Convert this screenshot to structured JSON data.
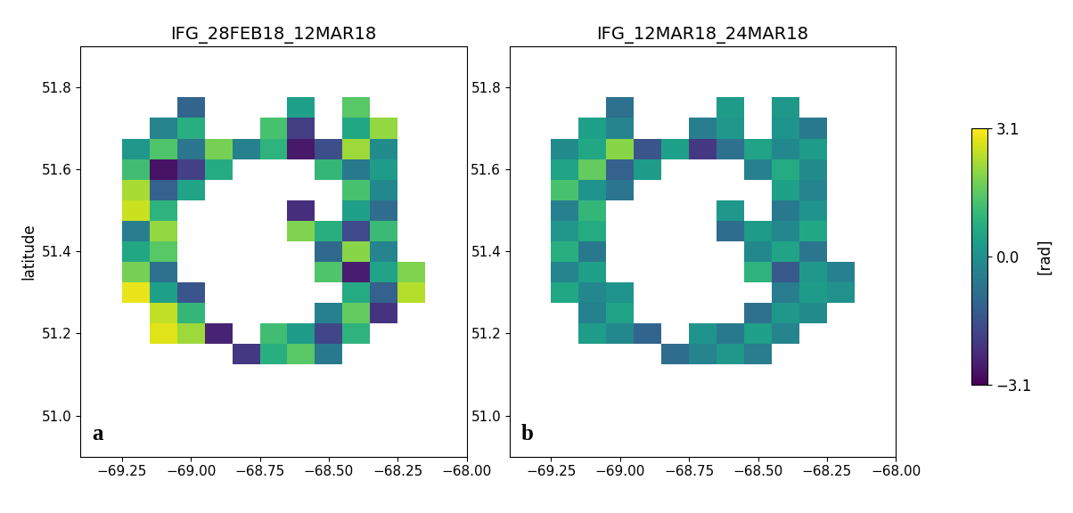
{
  "chart_data": [
    {
      "type": "heatmap",
      "title": "IFG_28FEB18_12MAR18",
      "panel_label": "a",
      "ylabel": "latitude",
      "color": "viridis",
      "x": [
        -69.3,
        -69.2,
        -69.1,
        -69.0,
        -68.9,
        -68.8,
        -68.7,
        -68.6,
        -68.5,
        -68.4,
        -68.3,
        -68.2
      ],
      "y": [
        51.15,
        51.2,
        51.25,
        51.3,
        51.35,
        51.4,
        51.45,
        51.5,
        51.55,
        51.6,
        51.65,
        51.7,
        51.75
      ],
      "values": [
        [
          null,
          null,
          null,
          null,
          null,
          -2.1,
          0.8,
          1.5,
          -0.6,
          null,
          null,
          null
        ],
        [
          null,
          null,
          2.8,
          2.2,
          -2.5,
          null,
          1.2,
          0.3,
          -1.8,
          0.9,
          null,
          null
        ],
        [
          null,
          null,
          2.5,
          1.0,
          null,
          null,
          null,
          null,
          -0.4,
          1.6,
          -2.2,
          null
        ],
        [
          null,
          2.9,
          0.4,
          -1.5,
          null,
          null,
          null,
          null,
          null,
          0.7,
          -1.2,
          2.4
        ],
        [
          null,
          1.8,
          -0.8,
          null,
          null,
          null,
          null,
          null,
          1.4,
          -2.6,
          0.5,
          1.9
        ],
        [
          null,
          0.6,
          1.5,
          null,
          null,
          null,
          null,
          null,
          -1.0,
          2.0,
          -0.3,
          null
        ],
        [
          null,
          -0.5,
          2.1,
          null,
          null,
          null,
          null,
          1.9,
          0.8,
          -1.7,
          1.1,
          null
        ],
        [
          null,
          2.6,
          0.9,
          null,
          null,
          null,
          null,
          -2.3,
          null,
          0.4,
          -0.9,
          null
        ],
        [
          null,
          2.3,
          -1.2,
          0.5,
          null,
          null,
          null,
          null,
          null,
          1.3,
          -0.2,
          null
        ],
        [
          null,
          1.2,
          -2.8,
          -1.9,
          0.7,
          null,
          null,
          null,
          1.0,
          -0.6,
          0.3,
          null
        ],
        [
          null,
          0.2,
          1.4,
          -0.7,
          1.8,
          -0.4,
          0.9,
          -2.7,
          -1.6,
          2.2,
          -0.1,
          null
        ],
        [
          null,
          null,
          -0.3,
          0.8,
          null,
          null,
          1.3,
          -2.0,
          null,
          0.6,
          2.1,
          null
        ],
        [
          null,
          null,
          null,
          -1.1,
          null,
          null,
          null,
          0.4,
          null,
          1.5,
          null,
          null
        ]
      ],
      "xlim": [
        -69.4,
        -68.0
      ],
      "ylim": [
        50.9,
        51.9
      ],
      "xticks": [
        {
          "value": -69.25,
          "label": "−69.25"
        },
        {
          "value": -69.0,
          "label": "−69.00"
        },
        {
          "value": -68.75,
          "label": "−68.75"
        },
        {
          "value": -68.5,
          "label": "−68.50"
        },
        {
          "value": -68.25,
          "label": "−68.25"
        },
        {
          "value": -68.0,
          "label": "−68.00"
        }
      ],
      "yticks": [
        51.0,
        51.2,
        51.4,
        51.6,
        51.8
      ]
    },
    {
      "type": "heatmap",
      "title": "IFG_12MAR18_24MAR18",
      "panel_label": "b",
      "color": "viridis",
      "x": [
        -69.3,
        -69.2,
        -69.1,
        -69.0,
        -68.9,
        -68.8,
        -68.7,
        -68.6,
        -68.5,
        -68.4,
        -68.3,
        -68.2
      ],
      "y": [
        51.15,
        51.2,
        51.25,
        51.3,
        51.35,
        51.4,
        51.45,
        51.5,
        51.55,
        51.6,
        51.65,
        51.7,
        51.75
      ],
      "values": [
        [
          null,
          null,
          null,
          null,
          null,
          -0.9,
          -0.3,
          0.2,
          -0.5,
          null,
          null,
          null
        ],
        [
          null,
          null,
          0.3,
          -0.2,
          -1.1,
          null,
          0.1,
          -0.6,
          0.4,
          -0.3,
          null,
          null
        ],
        [
          null,
          null,
          -0.4,
          0.5,
          null,
          null,
          null,
          null,
          -0.8,
          0.2,
          -0.1,
          null
        ],
        [
          null,
          0.6,
          -0.2,
          0.1,
          null,
          null,
          null,
          null,
          null,
          -0.5,
          0.3,
          0.0
        ],
        [
          null,
          -0.3,
          0.4,
          null,
          null,
          null,
          null,
          null,
          0.9,
          -1.4,
          0.2,
          -0.4
        ],
        [
          null,
          0.8,
          -0.6,
          null,
          null,
          null,
          null,
          null,
          -0.2,
          0.5,
          -0.7,
          null
        ],
        [
          null,
          0.2,
          0.7,
          null,
          null,
          null,
          null,
          -0.9,
          0.3,
          -0.2,
          0.6,
          null
        ],
        [
          null,
          -0.4,
          1.0,
          null,
          null,
          null,
          null,
          0.2,
          null,
          -0.6,
          0.1,
          null
        ],
        [
          null,
          1.3,
          0.1,
          -0.7,
          null,
          null,
          null,
          null,
          null,
          0.4,
          -0.3,
          null
        ],
        [
          null,
          0.5,
          1.6,
          -1.2,
          0.3,
          null,
          null,
          null,
          -0.4,
          0.7,
          -0.1,
          null
        ],
        [
          null,
          -0.1,
          0.6,
          2.0,
          -1.5,
          0.4,
          -2.1,
          -0.8,
          0.5,
          -0.2,
          0.3,
          null
        ],
        [
          null,
          null,
          0.4,
          -0.3,
          null,
          null,
          -0.5,
          0.2,
          null,
          0.1,
          -0.6,
          null
        ],
        [
          null,
          null,
          null,
          -0.8,
          null,
          null,
          null,
          0.3,
          null,
          0.2,
          null,
          null
        ]
      ],
      "xlim": [
        -69.4,
        -68.0
      ],
      "ylim": [
        50.9,
        51.9
      ],
      "xticks": [
        {
          "value": -69.25,
          "label": "−69.25"
        },
        {
          "value": -69.0,
          "label": "−69.00"
        },
        {
          "value": -68.75,
          "label": "−68.75"
        },
        {
          "value": -68.5,
          "label": "−68.50"
        },
        {
          "value": -68.25,
          "label": "−68.25"
        },
        {
          "value": -68.0,
          "label": "−68.00"
        }
      ],
      "yticks": [
        51.0,
        51.2,
        51.4,
        51.6,
        51.8
      ]
    }
  ],
  "colorbar": {
    "label": "[rad]",
    "range": [
      -3.1,
      3.1
    ],
    "ticks": [
      {
        "value": -3.1,
        "label": "−3.1"
      },
      0.0,
      3.1
    ]
  }
}
